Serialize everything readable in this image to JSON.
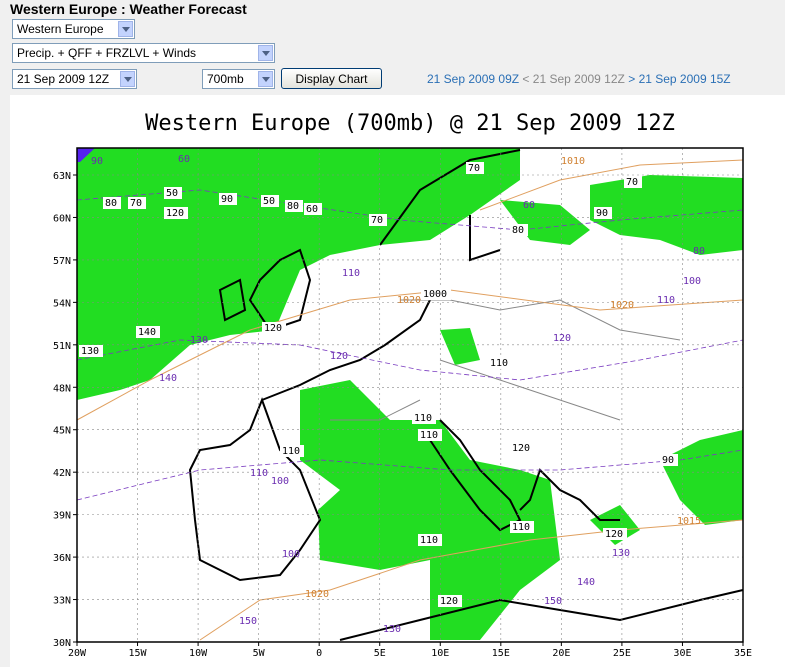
{
  "header": {
    "title": "Western Europe : Weather Forecast"
  },
  "controls": {
    "region": "Western Europe",
    "product": "Precip. + QFF + FRZLVL + Winds",
    "time": "21 Sep 2009 12Z",
    "level": "700mb",
    "button": "Display Chart"
  },
  "nav": {
    "prev": "21 Sep 2009 09Z",
    "sep1": "<",
    "current": "21 Sep 2009 12Z",
    "sep2": ">",
    "next": "21 Sep 2009 15Z"
  },
  "map": {
    "title": "Western Europe (700mb) @ 21 Sep 2009 12Z",
    "lon_labels": [
      "20W",
      "15W",
      "10W",
      "5W",
      "0",
      "5E",
      "10E",
      "15E",
      "20E",
      "25E",
      "30E",
      "35E"
    ],
    "lat_labels": [
      "63N",
      "60N",
      "57N",
      "54N",
      "51N",
      "48N",
      "45N",
      "42N",
      "39N",
      "36N",
      "33N",
      "30N"
    ],
    "contour_labels": [
      "60",
      "90",
      "50",
      "70",
      "80",
      "120",
      "90",
      "50",
      "80",
      "60",
      "70",
      "70",
      "70",
      "90",
      "60",
      "80",
      "1010",
      "80",
      "100",
      "110",
      "1020",
      "110",
      "1020",
      "1000",
      "120",
      "130",
      "140",
      "130",
      "140",
      "120",
      "120",
      "110",
      "110",
      "110",
      "120",
      "110",
      "100",
      "110",
      "90",
      "1015",
      "110",
      "110",
      "100",
      "120",
      "130",
      "140",
      "120",
      "150",
      "1020",
      "150",
      "130"
    ]
  }
}
